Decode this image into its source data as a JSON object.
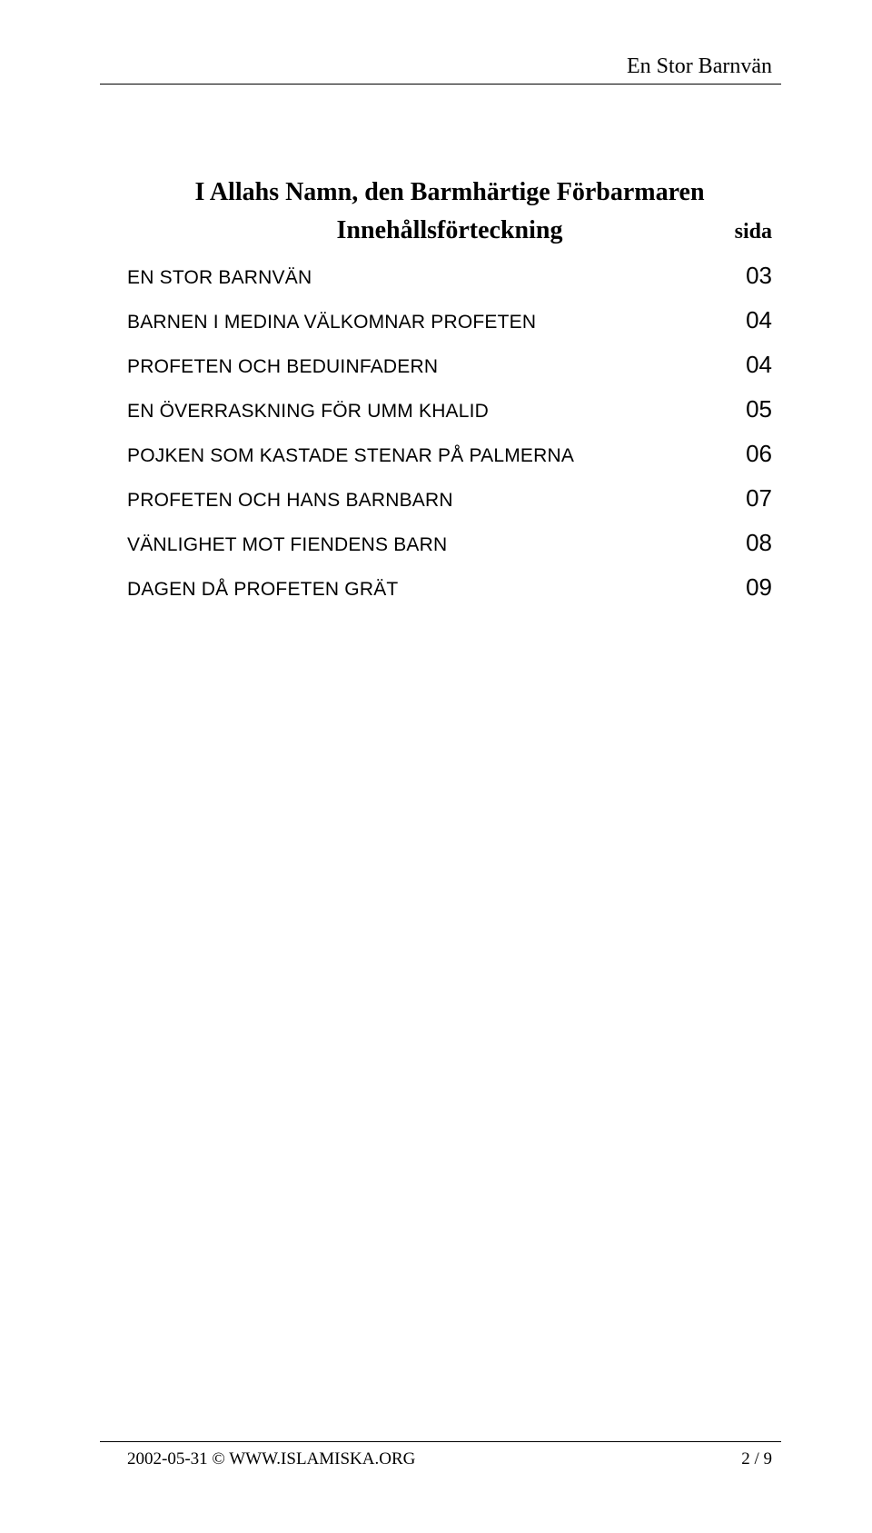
{
  "header": {
    "running_title": "En Stor Barnvän"
  },
  "main": {
    "invocation": "I Allahs Namn, den Barmhärtige Förbarmaren",
    "toc_heading": "Innehållsförteckning",
    "page_col_label": "sida",
    "toc": [
      {
        "title": "EN STOR BARNVÄN",
        "page": "03"
      },
      {
        "title": "BARNEN I MEDINA VÄLKOMNAR PROFETEN",
        "page": "04"
      },
      {
        "title": "PROFETEN OCH BEDUINFADERN",
        "page": "04"
      },
      {
        "title": "EN ÖVERRASKNING FÖR UMM KHALID",
        "page": "05"
      },
      {
        "title": "POJKEN SOM KASTADE STENAR PÅ PALMERNA",
        "page": "06"
      },
      {
        "title": "PROFETEN OCH HANS BARNBARN",
        "page": "07"
      },
      {
        "title": "VÄNLIGHET MOT FIENDENS BARN",
        "page": "08"
      },
      {
        "title": "DAGEN DÅ PROFETEN GRÄT",
        "page": "09"
      }
    ]
  },
  "footer": {
    "left": "2002-05-31 © WWW.ISLAMISKA.ORG",
    "right": "2 / 9"
  }
}
